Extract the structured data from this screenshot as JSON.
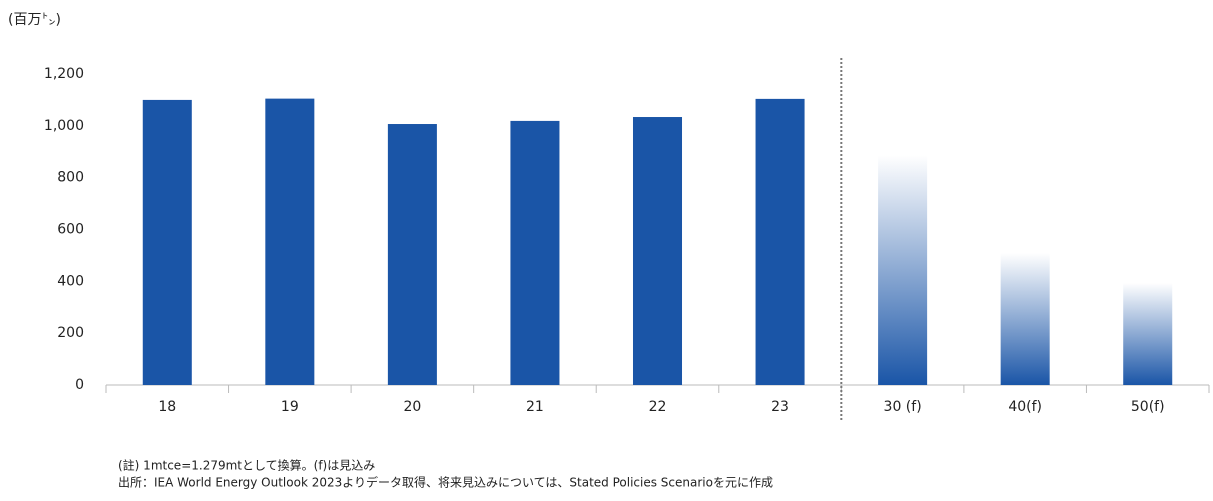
{
  "chart_data": {
    "type": "bar",
    "unit_label": "(百万㌧)",
    "categories": [
      "18",
      "19",
      "20",
      "21",
      "22",
      "23",
      "30 (f)",
      "40(f)",
      "50(f)"
    ],
    "values": [
      1100,
      1105,
      1007,
      1019,
      1034,
      1104,
      887,
      509,
      394
    ],
    "bar_styles": [
      "solid",
      "solid",
      "solid",
      "solid",
      "solid",
      "solid",
      "gradient",
      "gradient",
      "gradient"
    ],
    "color": "#1a55a7",
    "ylim": [
      0,
      1200
    ],
    "yticks": [
      0,
      {
        "value": 200,
        "label": "200"
      },
      400,
      600,
      800,
      {
        "value": 1000,
        "label": "1,000"
      },
      {
        "value": 1200,
        "label": "1,200"
      }
    ],
    "grid": false,
    "notes": [
      "(註) 1mtce=1.279mtとして換算。(f)は見込み",
      "出所：IEA World Energy Outlook 2023よりデータ取得、将来見込みについては、Stated Policies Scenarioを元に作成"
    ]
  }
}
